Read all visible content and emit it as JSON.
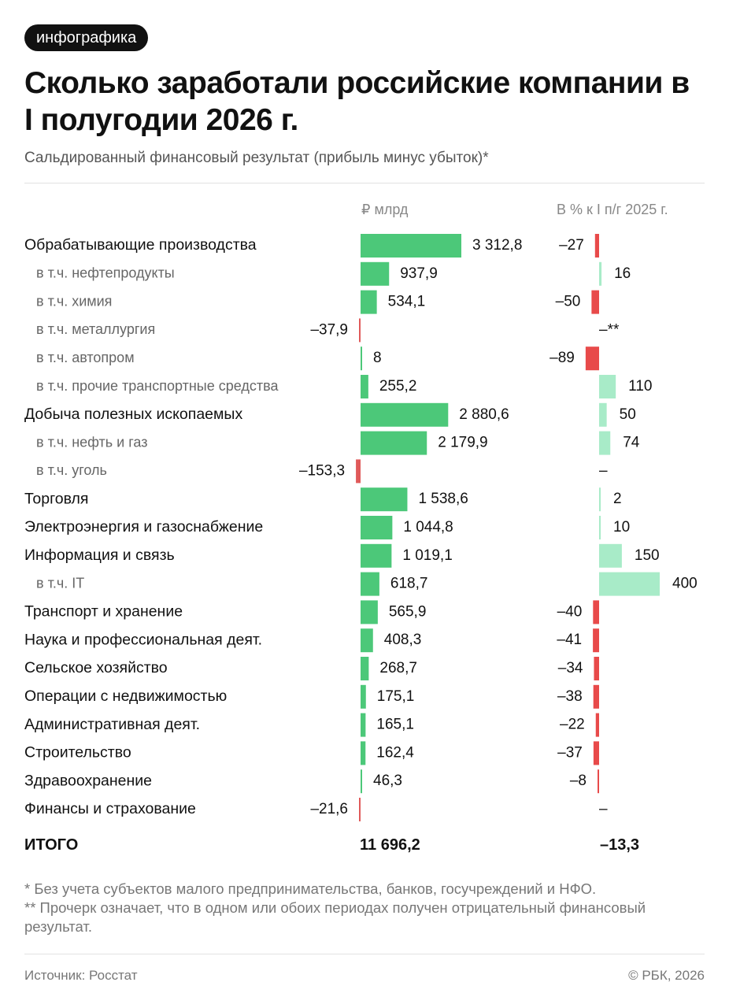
{
  "badge": "инфографика",
  "title": "Сколько заработали российские компании в I полугодии 2026 г.",
  "subtitle": "Сальдированный финансовый результат (прибыль минус убыток)*",
  "colors": {
    "positive_bar": "#4cc879",
    "negative_bar": "#e05a5a",
    "pct_positive": "#a8ebc8",
    "pct_negative": "#e84a4a"
  },
  "chart_data": {
    "type": "bar",
    "columns": {
      "value_header": "₽ млрд",
      "pct_header": "В % к I п/г 2025 г."
    },
    "rows": [
      {
        "label": "Обрабатывающие производства",
        "sub": false,
        "value": 3312.8,
        "value_label": "3 312,8",
        "pct": -27,
        "pct_label": "–27"
      },
      {
        "label": "в т.ч. нефтепродукты",
        "sub": true,
        "value": 937.9,
        "value_label": "937,9",
        "pct": 16,
        "pct_label": "16"
      },
      {
        "label": "в т.ч. химия",
        "sub": true,
        "value": 534.1,
        "value_label": "534,1",
        "pct": -50,
        "pct_label": "–50"
      },
      {
        "label": "в т.ч. металлургия",
        "sub": true,
        "value": -37.9,
        "value_label": "–37,9",
        "pct": null,
        "pct_label": "–**"
      },
      {
        "label": "в т.ч. автопром",
        "sub": true,
        "value": 8,
        "value_label": "8",
        "pct": -89,
        "pct_label": "–89"
      },
      {
        "label": "в т.ч. прочие транспортные средства",
        "sub": true,
        "value": 255.2,
        "value_label": "255,2",
        "pct": 110,
        "pct_label": "110"
      },
      {
        "label": "Добыча полезных ископаемых",
        "sub": false,
        "value": 2880.6,
        "value_label": "2 880,6",
        "pct": 50,
        "pct_label": "50"
      },
      {
        "label": "в т.ч. нефть и газ",
        "sub": true,
        "value": 2179.9,
        "value_label": "2 179,9",
        "pct": 74,
        "pct_label": "74"
      },
      {
        "label": "в т.ч. уголь",
        "sub": true,
        "value": -153.3,
        "value_label": "–153,3",
        "pct": null,
        "pct_label": "–"
      },
      {
        "label": "Торговля",
        "sub": false,
        "value": 1538.6,
        "value_label": "1 538,6",
        "pct": 2,
        "pct_label": "2"
      },
      {
        "label": "Электроэнергия и газоснабжение",
        "sub": false,
        "value": 1044.8,
        "value_label": "1 044,8",
        "pct": 10,
        "pct_label": "10"
      },
      {
        "label": "Информация и связь",
        "sub": false,
        "value": 1019.1,
        "value_label": "1 019,1",
        "pct": 150,
        "pct_label": "150"
      },
      {
        "label": "в т.ч. IT",
        "sub": true,
        "value": 618.7,
        "value_label": "618,7",
        "pct": 400,
        "pct_label": "400"
      },
      {
        "label": "Транспорт и хранение",
        "sub": false,
        "value": 565.9,
        "value_label": "565,9",
        "pct": -40,
        "pct_label": "–40"
      },
      {
        "label": "Наука и профессиональная деят.",
        "sub": false,
        "value": 408.3,
        "value_label": "408,3",
        "pct": -41,
        "pct_label": "–41"
      },
      {
        "label": "Сельское хозяйство",
        "sub": false,
        "value": 268.7,
        "value_label": "268,7",
        "pct": -34,
        "pct_label": "–34"
      },
      {
        "label": "Операции с недвижимостью",
        "sub": false,
        "value": 175.1,
        "value_label": "175,1",
        "pct": -38,
        "pct_label": "–38"
      },
      {
        "label": "Административная деят.",
        "sub": false,
        "value": 165.1,
        "value_label": "165,1",
        "pct": -22,
        "pct_label": "–22"
      },
      {
        "label": "Строительство",
        "sub": false,
        "value": 162.4,
        "value_label": "162,4",
        "pct": -37,
        "pct_label": "–37"
      },
      {
        "label": "Здравоохранение",
        "sub": false,
        "value": 46.3,
        "value_label": "46,3",
        "pct": -8,
        "pct_label": "–8"
      },
      {
        "label": "Финансы и страхование",
        "sub": false,
        "value": -21.6,
        "value_label": "–21,6",
        "pct": null,
        "pct_label": "–"
      }
    ],
    "total": {
      "label": "ИТОГО",
      "value": 11696.2,
      "value_label": "11 696,2",
      "pct": -13.3,
      "pct_label": "–13,3"
    }
  },
  "notes": [
    "* Без учета субъектов малого предпринимательства, банков, госучреждений и НФО.",
    "** Прочерк означает, что в одном или обоих периодах получен отрицательный финансовый результат."
  ],
  "footer": {
    "source": "Источник: Росстат",
    "copyright": "© РБК, 2026"
  }
}
